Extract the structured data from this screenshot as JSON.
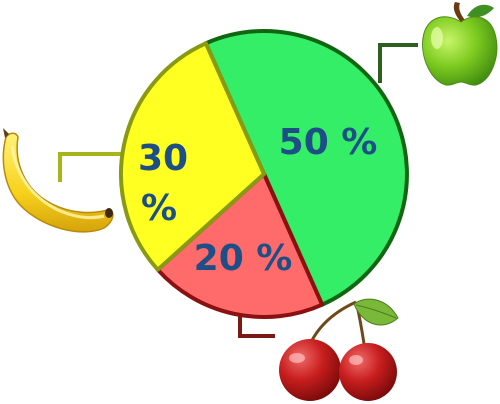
{
  "chart_data": {
    "type": "pie",
    "categories": [
      "apple",
      "cherry",
      "banana"
    ],
    "values": [
      50,
      20,
      30
    ],
    "labels": [
      "50 %",
      "20 %",
      "30 %"
    ],
    "colors": {
      "apple": "#33ee66",
      "cherry": "#ff6b6b",
      "banana": "#ffff22",
      "apple_stroke": "#116611",
      "cherry_stroke": "#8b1010",
      "banana_stroke": "#8a9a10",
      "apple_leader": "#2e5f1e",
      "cherry_leader": "#7a1a12",
      "banana_leader": "#a7b41a",
      "label_text": "#1d4f86"
    },
    "icons": [
      "apple-icon",
      "cherries-icon",
      "banana-icon"
    ]
  }
}
